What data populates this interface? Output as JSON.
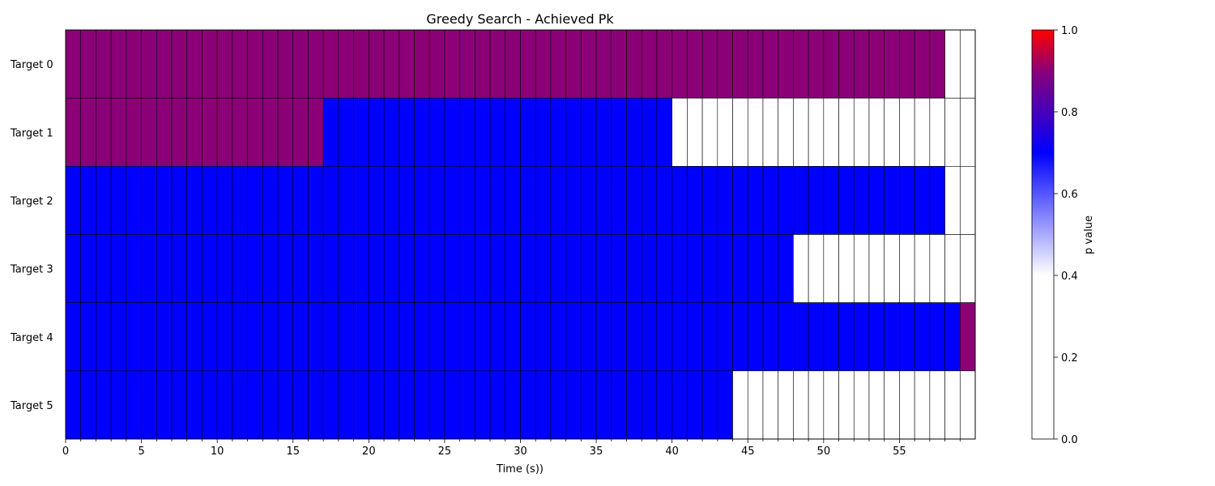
{
  "chart_data": {
    "type": "heatmap",
    "title": "Greedy Search - Achieved Pk",
    "xlabel": "Time (s))",
    "colorbar_label": "p value",
    "rows": [
      "Target 0",
      "Target 1",
      "Target 2",
      "Target 3",
      "Target 4",
      "Target 5"
    ],
    "x_range": [
      0,
      60
    ],
    "x_ticks": [
      0,
      5,
      10,
      15,
      20,
      25,
      30,
      35,
      40,
      45,
      50,
      55
    ],
    "x_minor_step": 1,
    "cell_width_seconds": 1,
    "colorbar_range": [
      0.0,
      1.0
    ],
    "colorbar_ticks": [
      "0.0",
      "0.2",
      "0.4",
      "0.6",
      "0.8",
      "1.0"
    ],
    "colormap": [
      {
        "value": 0.0,
        "color": "#ffffff"
      },
      {
        "value": 0.4,
        "color": "#ffffff"
      },
      {
        "value": 0.7,
        "color": "#0000ff"
      },
      {
        "value": 0.9,
        "color": "#8b0077"
      },
      {
        "value": 1.0,
        "color": "#ff0000"
      }
    ],
    "segments": [
      {
        "row": "Target 0",
        "start": 0,
        "end": 58,
        "value": 0.9
      },
      {
        "row": "Target 0",
        "start": 58,
        "end": 60,
        "value": 0.0
      },
      {
        "row": "Target 1",
        "start": 0,
        "end": 17,
        "value": 0.9
      },
      {
        "row": "Target 1",
        "start": 17,
        "end": 40,
        "value": 0.7
      },
      {
        "row": "Target 1",
        "start": 40,
        "end": 60,
        "value": 0.0
      },
      {
        "row": "Target 2",
        "start": 0,
        "end": 58,
        "value": 0.7
      },
      {
        "row": "Target 2",
        "start": 58,
        "end": 60,
        "value": 0.0
      },
      {
        "row": "Target 3",
        "start": 0,
        "end": 48,
        "value": 0.7
      },
      {
        "row": "Target 3",
        "start": 48,
        "end": 60,
        "value": 0.0
      },
      {
        "row": "Target 4",
        "start": 0,
        "end": 59,
        "value": 0.7
      },
      {
        "row": "Target 4",
        "start": 59,
        "end": 60,
        "value": 0.9
      },
      {
        "row": "Target 5",
        "start": 0,
        "end": 44,
        "value": 0.7
      },
      {
        "row": "Target 5",
        "start": 44,
        "end": 60,
        "value": 0.0
      }
    ]
  }
}
